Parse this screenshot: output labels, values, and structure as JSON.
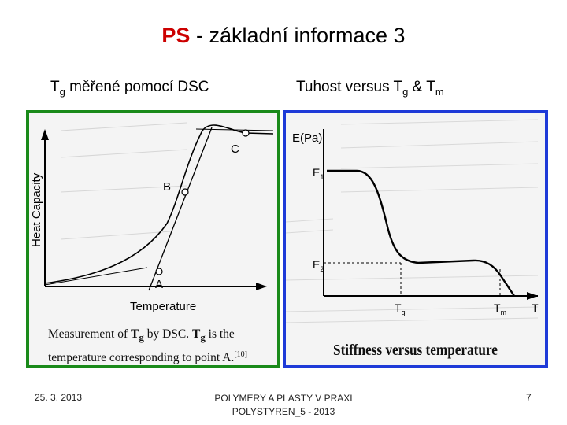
{
  "title": {
    "ps": "PS",
    "rest": " - základní informace 3"
  },
  "subtitle_left": {
    "t": "T",
    "sub": "g",
    "rest": " měřené pomocí DSC"
  },
  "subtitle_right": {
    "text1": "Tuhost versus T",
    "sub1": "g",
    "text2": " & T",
    "sub2": "m"
  },
  "left_panel": {
    "ylabel": "Heat Capacity",
    "xlabel": "Temperature",
    "points": {
      "a": "A",
      "b": "B",
      "c": "C"
    },
    "caption": {
      "p1": "Measurement of ",
      "t1": "T",
      "s1": "g",
      "p2": " by DSC. ",
      "t2": "T",
      "s2": "g",
      "p3": " is the temperature corresponding to point A.",
      "ref": "[10]"
    }
  },
  "right_panel": {
    "ylabel": "E(Pa)",
    "e1": "E",
    "e1_sub": "1",
    "e2": "E",
    "e2_sub": "2",
    "tg": "T",
    "tg_sub": "g",
    "tm": "T",
    "tm_sub": "m",
    "taxis": "T",
    "caption": "Stiffness versus temperature"
  },
  "footer": {
    "date": "25. 3. 2013",
    "line1": "POLYMERY A PLASTY V PRAXI",
    "line2": "POLYSTYREN_5 - 2013",
    "page": "7"
  },
  "colors": {
    "title_accent": "#cc0000",
    "left_border": "#1a8a1a",
    "right_border": "#1e3ad8"
  }
}
